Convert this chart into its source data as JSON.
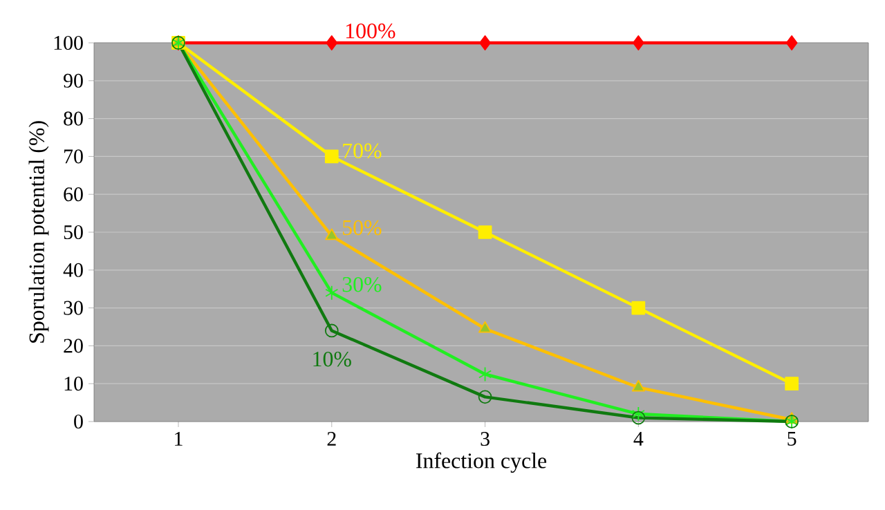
{
  "chart_data": {
    "type": "line",
    "xlabel": "Infection cycle",
    "ylabel": "Sporulation potential (%)",
    "categories": [
      "1",
      "2",
      "3",
      "4",
      "5"
    ],
    "series": [
      {
        "name": "100%",
        "color": "#ff0000",
        "marker": "diamond",
        "values": [
          100,
          100,
          100,
          100,
          100
        ]
      },
      {
        "name": "70%",
        "color": "#ffee00",
        "marker": "square",
        "values": [
          100,
          70,
          50,
          30,
          10
        ]
      },
      {
        "name": "50%",
        "color": "#ffc000",
        "marker": "triangle",
        "values": [
          100,
          49,
          24.5,
          9,
          0.5
        ]
      },
      {
        "name": "30%",
        "color": "#22ee22",
        "marker": "cross",
        "values": [
          100,
          34,
          12.5,
          2,
          0
        ]
      },
      {
        "name": "10%",
        "color": "#107a10",
        "marker": "circle",
        "values": [
          100,
          24,
          6.5,
          1,
          0
        ]
      }
    ],
    "ylim": [
      0,
      100
    ],
    "yticks": [
      0,
      10,
      20,
      30,
      40,
      50,
      60,
      70,
      80,
      90,
      100
    ],
    "grid": "y",
    "legend": false
  }
}
